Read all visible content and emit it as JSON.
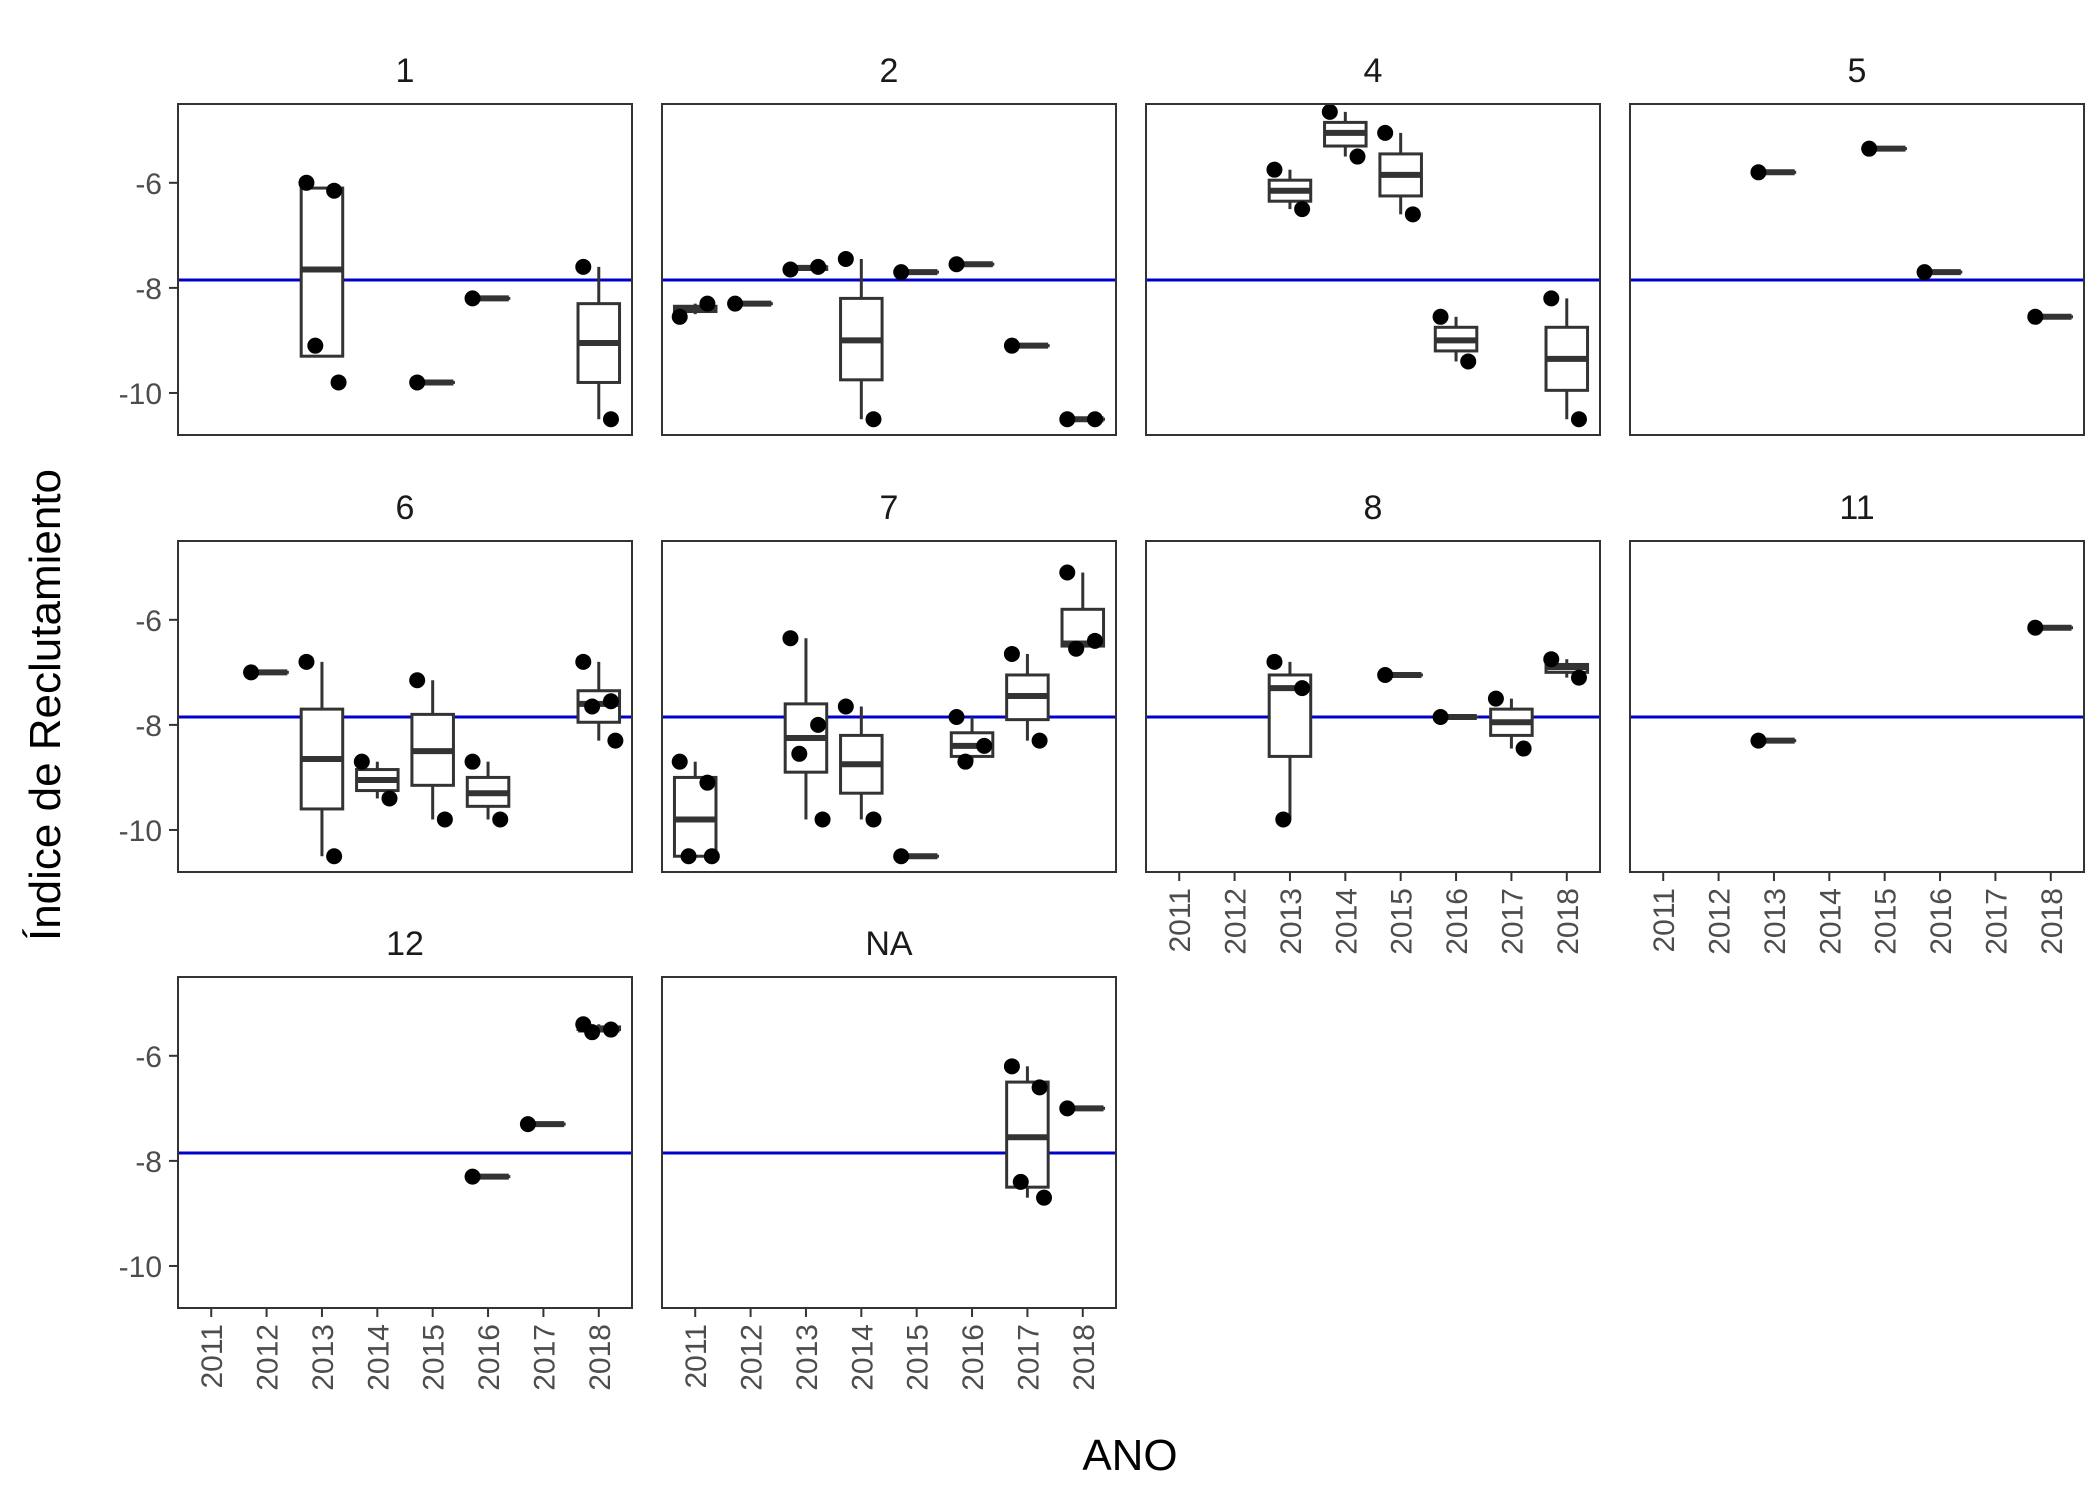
{
  "chart_data": {
    "type": "boxplot",
    "xlabel": "ANO",
    "ylabel": "Índice de Reclutamiento",
    "x_categories": [
      "2011",
      "2012",
      "2013",
      "2014",
      "2015",
      "2016",
      "2017",
      "2018"
    ],
    "y_ticks": [
      -10,
      -8,
      -6
    ],
    "y_tick_labels": [
      "-10",
      "-8",
      "-6"
    ],
    "ylim": [
      -10.8,
      -4.5
    ],
    "reference_line": {
      "y": -7.85,
      "color": "#0000cc"
    },
    "colors": {
      "box": "#333333",
      "point": "#000000",
      "panel_border": "#333333",
      "reference": "#0000cc"
    },
    "grid": false,
    "panels": [
      {
        "label": "1",
        "boxes": [
          {
            "year": "2013",
            "min": -9.3,
            "q1": -9.3,
            "median": -7.65,
            "q3": -6.1,
            "max": -6.1
          },
          {
            "year": "2015",
            "min": -9.8,
            "q1": -9.8,
            "median": -9.8,
            "q3": -9.8,
            "max": -9.8
          },
          {
            "year": "2016",
            "min": -8.2,
            "q1": -8.2,
            "median": -8.2,
            "q3": -8.2,
            "max": -8.2
          },
          {
            "year": "2018",
            "min": -10.5,
            "q1": -9.8,
            "median": -9.05,
            "q3": -8.3,
            "max": -7.6
          }
        ],
        "points": [
          {
            "year": "2013",
            "y": -6.0
          },
          {
            "year": "2013",
            "y": -6.15
          },
          {
            "year": "2013",
            "y": -9.1
          },
          {
            "year": "2013",
            "y": -9.8
          },
          {
            "year": "2015",
            "y": -9.8
          },
          {
            "year": "2016",
            "y": -8.2
          },
          {
            "year": "2018",
            "y": -7.6
          },
          {
            "year": "2018",
            "y": -10.5
          }
        ]
      },
      {
        "label": "2",
        "boxes": [
          {
            "year": "2011",
            "min": -8.5,
            "q1": -8.45,
            "median": -8.4,
            "q3": -8.35,
            "max": -8.3
          },
          {
            "year": "2012",
            "min": -8.3,
            "q1": -8.3,
            "median": -8.3,
            "q3": -8.3,
            "max": -8.3
          },
          {
            "year": "2013",
            "min": -7.65,
            "q1": -7.65,
            "median": -7.62,
            "q3": -7.6,
            "max": -7.6
          },
          {
            "year": "2014",
            "min": -10.5,
            "q1": -9.75,
            "median": -9.0,
            "q3": -8.2,
            "max": -7.45
          },
          {
            "year": "2015",
            "min": -7.7,
            "q1": -7.7,
            "median": -7.7,
            "q3": -7.7,
            "max": -7.7
          },
          {
            "year": "2016",
            "min": -7.55,
            "q1": -7.55,
            "median": -7.55,
            "q3": -7.55,
            "max": -7.55
          },
          {
            "year": "2017",
            "min": -9.1,
            "q1": -9.1,
            "median": -9.1,
            "q3": -9.1,
            "max": -9.1
          },
          {
            "year": "2018",
            "min": -10.5,
            "q1": -10.5,
            "median": -10.5,
            "q3": -10.5,
            "max": -10.5
          }
        ],
        "points": [
          {
            "year": "2011",
            "y": -8.55
          },
          {
            "year": "2011",
            "y": -8.3
          },
          {
            "year": "2012",
            "y": -8.3
          },
          {
            "year": "2013",
            "y": -7.65
          },
          {
            "year": "2013",
            "y": -7.6
          },
          {
            "year": "2014",
            "y": -7.45
          },
          {
            "year": "2014",
            "y": -10.5
          },
          {
            "year": "2015",
            "y": -7.7
          },
          {
            "year": "2016",
            "y": -7.55
          },
          {
            "year": "2017",
            "y": -9.1
          },
          {
            "year": "2018",
            "y": -10.5
          },
          {
            "year": "2018",
            "y": -10.5
          }
        ]
      },
      {
        "label": "4",
        "boxes": [
          {
            "year": "2013",
            "min": -6.5,
            "q1": -6.35,
            "median": -6.15,
            "q3": -5.95,
            "max": -5.75
          },
          {
            "year": "2014",
            "min": -5.5,
            "q1": -5.3,
            "median": -5.05,
            "q3": -4.85,
            "max": -4.65
          },
          {
            "year": "2015",
            "min": -6.6,
            "q1": -6.25,
            "median": -5.85,
            "q3": -5.45,
            "max": -5.05
          },
          {
            "year": "2016",
            "min": -9.4,
            "q1": -9.2,
            "median": -9.0,
            "q3": -8.75,
            "max": -8.55
          },
          {
            "year": "2018",
            "min": -10.5,
            "q1": -9.95,
            "median": -9.35,
            "q3": -8.75,
            "max": -8.2
          }
        ],
        "points": [
          {
            "year": "2013",
            "y": -5.75
          },
          {
            "year": "2013",
            "y": -6.5
          },
          {
            "year": "2014",
            "y": -4.65
          },
          {
            "year": "2014",
            "y": -5.5
          },
          {
            "year": "2015",
            "y": -5.05
          },
          {
            "year": "2015",
            "y": -6.6
          },
          {
            "year": "2016",
            "y": -8.55
          },
          {
            "year": "2016",
            "y": -9.4
          },
          {
            "year": "2018",
            "y": -8.2
          },
          {
            "year": "2018",
            "y": -10.5
          }
        ]
      },
      {
        "label": "5",
        "boxes": [
          {
            "year": "2013",
            "min": -5.8,
            "q1": -5.8,
            "median": -5.8,
            "q3": -5.8,
            "max": -5.8
          },
          {
            "year": "2015",
            "min": -5.35,
            "q1": -5.35,
            "median": -5.35,
            "q3": -5.35,
            "max": -5.35
          },
          {
            "year": "2016",
            "min": -7.7,
            "q1": -7.7,
            "median": -7.7,
            "q3": -7.7,
            "max": -7.7
          },
          {
            "year": "2018",
            "min": -8.55,
            "q1": -8.55,
            "median": -8.55,
            "q3": -8.55,
            "max": -8.55
          }
        ],
        "points": [
          {
            "year": "2013",
            "y": -5.8
          },
          {
            "year": "2015",
            "y": -5.35
          },
          {
            "year": "2016",
            "y": -7.7
          },
          {
            "year": "2018",
            "y": -8.55
          }
        ]
      },
      {
        "label": "6",
        "boxes": [
          {
            "year": "2012",
            "min": -7.0,
            "q1": -7.0,
            "median": -7.0,
            "q3": -7.0,
            "max": -7.0
          },
          {
            "year": "2013",
            "min": -10.5,
            "q1": -9.6,
            "median": -8.65,
            "q3": -7.7,
            "max": -6.8
          },
          {
            "year": "2014",
            "min": -9.4,
            "q1": -9.25,
            "median": -9.05,
            "q3": -8.85,
            "max": -8.7
          },
          {
            "year": "2015",
            "min": -9.8,
            "q1": -9.15,
            "median": -8.5,
            "q3": -7.8,
            "max": -7.15
          },
          {
            "year": "2016",
            "min": -9.8,
            "q1": -9.55,
            "median": -9.3,
            "q3": -9.0,
            "max": -8.7
          },
          {
            "year": "2018",
            "min": -8.3,
            "q1": -7.95,
            "median": -7.6,
            "q3": -7.35,
            "max": -6.8
          }
        ],
        "points": [
          {
            "year": "2012",
            "y": -7.0
          },
          {
            "year": "2013",
            "y": -6.8
          },
          {
            "year": "2013",
            "y": -10.5
          },
          {
            "year": "2014",
            "y": -8.7
          },
          {
            "year": "2014",
            "y": -9.4
          },
          {
            "year": "2015",
            "y": -7.15
          },
          {
            "year": "2015",
            "y": -9.8
          },
          {
            "year": "2016",
            "y": -8.7
          },
          {
            "year": "2016",
            "y": -9.8
          },
          {
            "year": "2018",
            "y": -6.8
          },
          {
            "year": "2018",
            "y": -7.55
          },
          {
            "year": "2018",
            "y": -7.65
          },
          {
            "year": "2018",
            "y": -8.3
          }
        ]
      },
      {
        "label": "7",
        "boxes": [
          {
            "year": "2011",
            "min": -10.5,
            "q1": -10.5,
            "median": -9.8,
            "q3": -9.0,
            "max": -8.7
          },
          {
            "year": "2013",
            "min": -9.8,
            "q1": -8.9,
            "median": -8.25,
            "q3": -7.6,
            "max": -6.35
          },
          {
            "year": "2014",
            "min": -9.8,
            "q1": -9.3,
            "median": -8.75,
            "q3": -8.2,
            "max": -7.65
          },
          {
            "year": "2015",
            "min": -10.5,
            "q1": -10.5,
            "median": -10.5,
            "q3": -10.5,
            "max": -10.5
          },
          {
            "year": "2016",
            "min": -8.7,
            "q1": -8.6,
            "median": -8.4,
            "q3": -8.15,
            "max": -7.85
          },
          {
            "year": "2017",
            "min": -8.3,
            "q1": -7.9,
            "median": -7.45,
            "q3": -7.05,
            "max": -6.65
          },
          {
            "year": "2018",
            "min": -6.55,
            "q1": -6.5,
            "median": -6.45,
            "q3": -5.8,
            "max": -5.1
          }
        ],
        "points": [
          {
            "year": "2011",
            "y": -8.7
          },
          {
            "year": "2011",
            "y": -9.1
          },
          {
            "year": "2011",
            "y": -10.5
          },
          {
            "year": "2011",
            "y": -10.5
          },
          {
            "year": "2013",
            "y": -6.35
          },
          {
            "year": "2013",
            "y": -8.0
          },
          {
            "year": "2013",
            "y": -8.55
          },
          {
            "year": "2013",
            "y": -9.8
          },
          {
            "year": "2014",
            "y": -7.65
          },
          {
            "year": "2014",
            "y": -9.8
          },
          {
            "year": "2015",
            "y": -10.5
          },
          {
            "year": "2016",
            "y": -7.85
          },
          {
            "year": "2016",
            "y": -8.4
          },
          {
            "year": "2016",
            "y": -8.7
          },
          {
            "year": "2017",
            "y": -6.65
          },
          {
            "year": "2017",
            "y": -8.3
          },
          {
            "year": "2018",
            "y": -5.1
          },
          {
            "year": "2018",
            "y": -6.4
          },
          {
            "year": "2018",
            "y": -6.55
          }
        ]
      },
      {
        "label": "8",
        "boxes": [
          {
            "year": "2013",
            "min": -9.8,
            "q1": -8.6,
            "median": -7.3,
            "q3": -7.05,
            "max": -6.8
          },
          {
            "year": "2015",
            "min": -7.05,
            "q1": -7.05,
            "median": -7.05,
            "q3": -7.05,
            "max": -7.05
          },
          {
            "year": "2016",
            "min": -7.85,
            "q1": -7.85,
            "median": -7.85,
            "q3": -7.85,
            "max": -7.85
          },
          {
            "year": "2017",
            "min": -8.45,
            "q1": -8.2,
            "median": -7.95,
            "q3": -7.7,
            "max": -7.5
          },
          {
            "year": "2018",
            "min": -7.1,
            "q1": -7.0,
            "median": -6.9,
            "q3": -6.85,
            "max": -6.75
          }
        ],
        "points": [
          {
            "year": "2013",
            "y": -6.8
          },
          {
            "year": "2013",
            "y": -7.3
          },
          {
            "year": "2013",
            "y": -9.8
          },
          {
            "year": "2015",
            "y": -7.05
          },
          {
            "year": "2016",
            "y": -7.85
          },
          {
            "year": "2017",
            "y": -7.5
          },
          {
            "year": "2017",
            "y": -8.45
          },
          {
            "year": "2018",
            "y": -6.75
          },
          {
            "year": "2018",
            "y": -7.1
          }
        ]
      },
      {
        "label": "11",
        "boxes": [
          {
            "year": "2013",
            "min": -8.3,
            "q1": -8.3,
            "median": -8.3,
            "q3": -8.3,
            "max": -8.3
          },
          {
            "year": "2018",
            "min": -6.15,
            "q1": -6.15,
            "median": -6.15,
            "q3": -6.15,
            "max": -6.15
          }
        ],
        "points": [
          {
            "year": "2013",
            "y": -8.3
          },
          {
            "year": "2018",
            "y": -6.15
          }
        ]
      },
      {
        "label": "12",
        "boxes": [
          {
            "year": "2016",
            "min": -8.3,
            "q1": -8.3,
            "median": -8.3,
            "q3": -8.3,
            "max": -8.3
          },
          {
            "year": "2017",
            "min": -7.3,
            "q1": -7.3,
            "median": -7.3,
            "q3": -7.3,
            "max": -7.3
          },
          {
            "year": "2018",
            "min": -5.55,
            "q1": -5.5,
            "median": -5.5,
            "q3": -5.45,
            "max": -5.4
          }
        ],
        "points": [
          {
            "year": "2016",
            "y": -8.3
          },
          {
            "year": "2017",
            "y": -7.3
          },
          {
            "year": "2018",
            "y": -5.4
          },
          {
            "year": "2018",
            "y": -5.5
          },
          {
            "year": "2018",
            "y": -5.55
          }
        ]
      },
      {
        "label": "NA",
        "boxes": [
          {
            "year": "2017",
            "min": -8.7,
            "q1": -8.5,
            "median": -7.55,
            "q3": -6.5,
            "max": -6.2
          },
          {
            "year": "2018",
            "min": -7.0,
            "q1": -7.0,
            "median": -7.0,
            "q3": -7.0,
            "max": -7.0
          }
        ],
        "points": [
          {
            "year": "2017",
            "y": -6.2
          },
          {
            "year": "2017",
            "y": -6.6
          },
          {
            "year": "2017",
            "y": -8.4
          },
          {
            "year": "2017",
            "y": -8.7
          },
          {
            "year": "2018",
            "y": -7.0
          }
        ]
      }
    ]
  }
}
